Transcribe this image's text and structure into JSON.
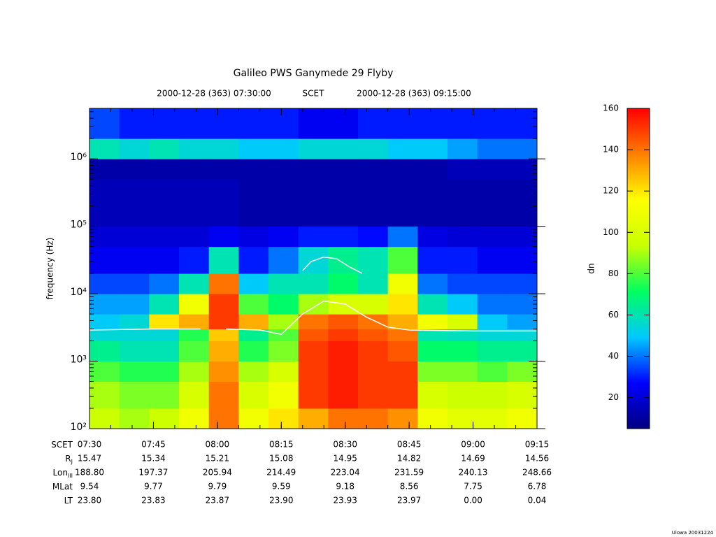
{
  "chart_data": {
    "type": "spectrogram",
    "title": "Galileo PWS Ganymede 29 Flyby",
    "start_label": "2000-12-28 (363) 07:30:00",
    "time_system": "SCET",
    "end_label": "2000-12-28 (363) 09:15:00",
    "y_label": "frequency (Hz)",
    "colorbar_label": "dn",
    "footer": "Uiowa 20031224",
    "log_y": true,
    "xlim": [
      "07:30",
      "09:15"
    ],
    "xticks": [
      "07:30",
      "07:45",
      "08:00",
      "08:15",
      "08:30",
      "08:45",
      "09:00",
      "09:15"
    ],
    "ylim": [
      100,
      5600000
    ],
    "yticks": [
      {
        "value": 100,
        "label": "10²"
      },
      {
        "value": 1000,
        "label": "10³"
      },
      {
        "value": 10000,
        "label": "10⁴"
      },
      {
        "value": 100000,
        "label": "10⁵"
      },
      {
        "value": 1000000,
        "label": "10⁶"
      }
    ],
    "zlim": [
      5,
      160
    ],
    "zticks": [
      20,
      40,
      60,
      80,
      100,
      120,
      140,
      160
    ],
    "colormap": [
      "#000080",
      "#0000ff",
      "#00c8ff",
      "#00ff60",
      "#c8ff00",
      "#ffff00",
      "#ff8000",
      "#ff0000"
    ],
    "x_edges": [
      "07:30",
      "07:37",
      "07:44",
      "07:51",
      "07:58",
      "08:05",
      "08:12",
      "08:19",
      "08:26",
      "08:33",
      "08:40",
      "08:47",
      "08:54",
      "09:01",
      "09:08",
      "09:15"
    ],
    "y_edges": [
      100,
      200,
      500,
      1000,
      2000,
      3000,
      5000,
      10000,
      20000,
      50000,
      100000,
      500000,
      1000000,
      2000000,
      5600000
    ],
    "values": [
      [
        95,
        90,
        95,
        110,
        140,
        110,
        120,
        130,
        140,
        140,
        135,
        110,
        105,
        105,
        110
      ],
      [
        90,
        85,
        85,
        100,
        140,
        100,
        110,
        150,
        155,
        150,
        150,
        100,
        95,
        95,
        100
      ],
      [
        80,
        75,
        75,
        90,
        135,
        90,
        100,
        150,
        155,
        150,
        150,
        85,
        85,
        80,
        85
      ],
      [
        65,
        60,
        60,
        80,
        130,
        75,
        85,
        150,
        155,
        150,
        145,
        70,
        70,
        65,
        65
      ],
      [
        55,
        55,
        55,
        75,
        125,
        65,
        80,
        145,
        150,
        145,
        140,
        60,
        58,
        55,
        55
      ],
      [
        50,
        55,
        120,
        130,
        150,
        130,
        90,
        140,
        145,
        140,
        130,
        110,
        100,
        50,
        45
      ],
      [
        45,
        45,
        60,
        110,
        150,
        80,
        70,
        90,
        100,
        100,
        120,
        60,
        50,
        40,
        40
      ],
      [
        35,
        35,
        40,
        60,
        140,
        50,
        60,
        60,
        70,
        60,
        110,
        40,
        35,
        35,
        35
      ],
      [
        25,
        25,
        25,
        30,
        60,
        30,
        40,
        55,
        65,
        60,
        80,
        30,
        30,
        25,
        25
      ],
      [
        20,
        20,
        20,
        20,
        25,
        22,
        25,
        30,
        30,
        28,
        40,
        22,
        20,
        20,
        20
      ],
      [
        15,
        15,
        15,
        15,
        15,
        12,
        12,
        12,
        12,
        12,
        12,
        12,
        12,
        12,
        12
      ],
      [
        12,
        12,
        12,
        12,
        12,
        12,
        12,
        12,
        12,
        12,
        12,
        12,
        15,
        15,
        15
      ],
      [
        60,
        55,
        60,
        55,
        55,
        50,
        50,
        55,
        55,
        55,
        50,
        50,
        45,
        40,
        40
      ],
      [
        35,
        30,
        30,
        30,
        30,
        30,
        30,
        25,
        25,
        30,
        30,
        30,
        30,
        30,
        30
      ]
    ],
    "series": [
      {
        "color": "#ffffff",
        "x": [
          "07:30",
          "07:45",
          "07:56",
          "07:58",
          "08:02",
          "08:10",
          "08:15",
          "08:20",
          "08:25",
          "08:30",
          "08:35",
          "08:40",
          "08:45",
          "09:00",
          "09:15"
        ],
        "values": [
          2900,
          3000,
          3000,
          null,
          3000,
          2900,
          2500,
          5000,
          7800,
          7000,
          4500,
          3200,
          2900,
          2800,
          2800
        ]
      },
      {
        "color": "#ffffff",
        "x": [
          "08:20",
          "08:22",
          "08:25",
          "08:28",
          "08:31",
          "08:34"
        ],
        "values": [
          22000,
          30000,
          35000,
          33000,
          25000,
          20000
        ]
      }
    ],
    "ephemeris": {
      "rows": [
        {
          "label": {
            "text": "SCET"
          },
          "values": [
            "07:30",
            "07:45",
            "08:00",
            "08:15",
            "08:30",
            "08:45",
            "09:00",
            "09:15"
          ]
        },
        {
          "label": {
            "text": "R",
            "sub": "J"
          },
          "values": [
            "15.47",
            "15.34",
            "15.21",
            "15.08",
            "14.95",
            "14.82",
            "14.69",
            "14.56"
          ]
        },
        {
          "label": {
            "text": "Lon",
            "sub": "III"
          },
          "values": [
            "188.80",
            "197.37",
            "205.94",
            "214.49",
            "223.04",
            "231.59",
            "240.13",
            "248.66"
          ]
        },
        {
          "label": {
            "text": "MLat"
          },
          "values": [
            "9.54",
            "9.77",
            "9.79",
            "9.59",
            "9.18",
            "8.56",
            "7.75",
            "6.78"
          ]
        },
        {
          "label": {
            "text": "LT"
          },
          "values": [
            "23.80",
            "23.83",
            "23.87",
            "23.90",
            "23.93",
            "23.97",
            "0.00",
            "0.04"
          ]
        }
      ]
    }
  }
}
